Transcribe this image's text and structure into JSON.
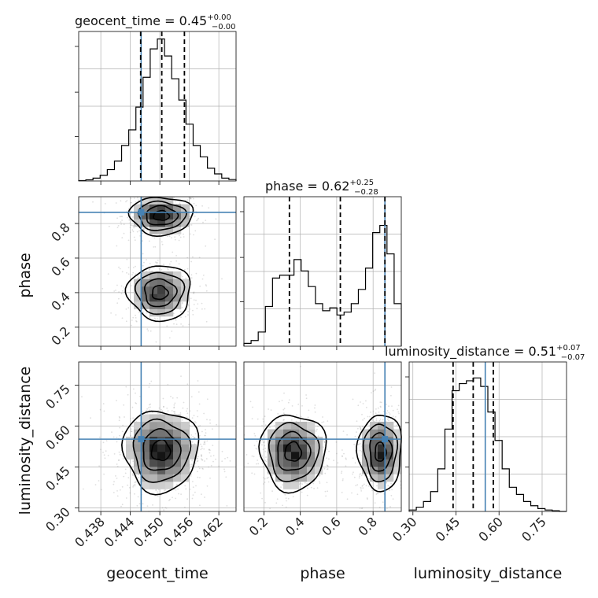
{
  "chart_data": {
    "type": "corner",
    "parameters": [
      "geocent_time",
      "phase",
      "luminosity_distance"
    ],
    "axes": {
      "geocent_time": {
        "label": "geocent_time",
        "range": [
          0.4335,
          0.4655
        ],
        "ticks": [
          0.438,
          0.444,
          0.45,
          0.456,
          0.462
        ],
        "tick_labels": [
          "0.438",
          "0.444",
          "0.450",
          "0.456",
          "0.462"
        ],
        "truth": 0.4462
      },
      "phase": {
        "label": "phase",
        "range": [
          0.09,
          0.955
        ],
        "ticks": [
          0.2,
          0.4,
          0.6,
          0.8
        ],
        "tick_labels": [
          "0.2",
          "0.4",
          "0.6",
          "0.8"
        ],
        "truth": 0.865
      },
      "luminosity_distance": {
        "label": "luminosity_distance",
        "range": [
          0.287,
          0.835
        ],
        "ticks": [
          0.3,
          0.45,
          0.6,
          0.75
        ],
        "tick_labels": [
          "0.30",
          "0.45",
          "0.60",
          "0.75"
        ],
        "truth": 0.552
      }
    },
    "titles": {
      "geocent_time": {
        "name": "geocent_time = ",
        "median": "0.45",
        "plus": "+0.00",
        "minus": "−0.00"
      },
      "phase": {
        "name": "phase = ",
        "median": "0.62",
        "plus": "+0.25",
        "minus": "−0.28"
      },
      "luminosity_distance": {
        "name": "luminosity_distance = ",
        "median": "0.51",
        "plus": "+0.07",
        "minus": "−0.07"
      }
    },
    "histograms": {
      "geocent_time": {
        "values": [
          0.003,
          0.008,
          0.02,
          0.04,
          0.08,
          0.14,
          0.25,
          0.36,
          0.52,
          0.73,
          0.93,
          1.0,
          0.88,
          0.72,
          0.57,
          0.4,
          0.25,
          0.17,
          0.09,
          0.05,
          0.02,
          0.01
        ],
        "quantiles": [
          0.4461,
          0.4504,
          0.455
        ]
      },
      "phase": {
        "values": [
          0.02,
          0.04,
          0.1,
          0.28,
          0.48,
          0.5,
          0.5,
          0.61,
          0.53,
          0.42,
          0.3,
          0.25,
          0.27,
          0.22,
          0.24,
          0.3,
          0.4,
          0.55,
          0.8,
          0.85,
          0.65,
          0.3
        ],
        "quantiles": [
          0.34,
          0.62,
          0.865
        ]
      },
      "luminosity_distance": {
        "values": [
          0.01,
          0.03,
          0.07,
          0.14,
          0.3,
          0.58,
          0.85,
          0.9,
          0.92,
          0.94,
          0.88,
          0.7,
          0.5,
          0.3,
          0.17,
          0.12,
          0.07,
          0.04,
          0.02,
          0.01,
          0.005,
          0.0
        ],
        "quantiles": [
          0.44,
          0.51,
          0.58
        ]
      }
    },
    "pairs": [
      {
        "x": "geocent_time",
        "y": "phase",
        "modes": [
          {
            "cx": 0.4503,
            "cy": 0.845,
            "sx": 0.0032,
            "sy": 0.055,
            "weight": 0.55
          },
          {
            "cx": 0.45,
            "cy": 0.4,
            "sx": 0.0032,
            "sy": 0.08,
            "weight": 0.45
          }
        ]
      },
      {
        "x": "geocent_time",
        "y": "luminosity_distance",
        "modes": [
          {
            "cx": 0.4502,
            "cy": 0.51,
            "sx": 0.0038,
            "sy": 0.075,
            "weight": 1.0
          }
        ]
      },
      {
        "x": "phase",
        "y": "luminosity_distance",
        "modes": [
          {
            "cx": 0.36,
            "cy": 0.505,
            "sx": 0.09,
            "sy": 0.07,
            "weight": 0.5
          },
          {
            "cx": 0.84,
            "cy": 0.505,
            "sx": 0.06,
            "sy": 0.07,
            "weight": 0.5
          }
        ]
      }
    ]
  }
}
